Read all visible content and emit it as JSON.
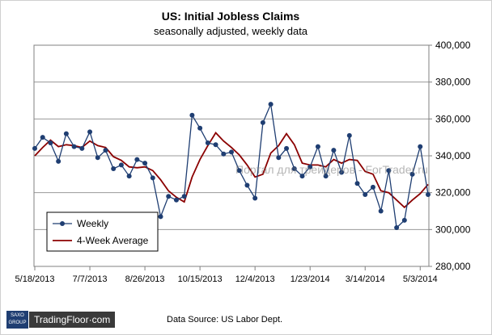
{
  "chart_data": {
    "type": "line",
    "title": "US: Initial Jobless Claims",
    "subtitle": "seasonally  adjusted,  weekly data",
    "x_ticks": [
      "5/18/2013",
      "7/7/2013",
      "8/26/2013",
      "10/15/2013",
      "12/4/2013",
      "1/23/2014",
      "3/14/2014",
      "5/3/2014"
    ],
    "y_ticks": [
      "280,000",
      "300,000",
      "320,000",
      "340,000",
      "360,000",
      "380,000",
      "400,000"
    ],
    "ylim": [
      280000,
      400000
    ],
    "grid": true,
    "legend_position": "bottom-left",
    "series": [
      {
        "name": "Weekly",
        "color": "#1f3e72",
        "marker": "circle",
        "values": [
          344000,
          350000,
          347000,
          337000,
          352000,
          345000,
          344000,
          353000,
          339000,
          343000,
          333000,
          335000,
          329000,
          338000,
          336000,
          328000,
          307000,
          318000,
          316000,
          318000,
          362000,
          355000,
          347000,
          346000,
          341000,
          342000,
          332000,
          324000,
          317000,
          358000,
          368000,
          339000,
          344000,
          333000,
          329000,
          334000,
          345000,
          329000,
          343000,
          331000,
          351000,
          325000,
          319000,
          323000,
          310000,
          332000,
          301000,
          305000,
          330000,
          345000,
          319000
        ]
      },
      {
        "name": "4-Week Average",
        "color": "#8b0000",
        "marker": "none",
        "values": [
          340000,
          344500,
          348500,
          345000,
          346000,
          345500,
          344500,
          348000,
          345500,
          344500,
          339500,
          337500,
          334000,
          333500,
          334000,
          332000,
          327000,
          321000,
          317500,
          315000,
          328500,
          338000,
          345500,
          352500,
          348000,
          344500,
          340500,
          335000,
          328500,
          330000,
          341500,
          345500,
          352000,
          346000,
          336000,
          335000,
          335000,
          334000,
          338000,
          336000,
          338000,
          337500,
          331500,
          330000,
          321000,
          320000,
          316000,
          312000,
          316000,
          319500,
          324500
        ]
      }
    ]
  },
  "footer": {
    "badge_line1": "SAXO",
    "badge_line2": "GROUP",
    "brand": "TradingFloor·com",
    "source": "Data Source: US Labor Dept."
  },
  "watermark": "Портал для трейдеров - ForTrader.ru"
}
